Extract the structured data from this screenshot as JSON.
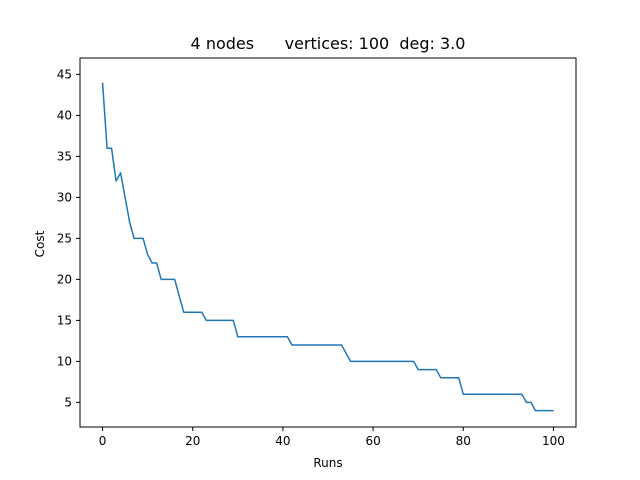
{
  "chart_data": {
    "type": "line",
    "title": "4 nodes      vertices: 100  deg: 3.0",
    "xlabel": "Runs",
    "ylabel": "Cost",
    "xlim": [
      -5,
      105
    ],
    "ylim": [
      2.0,
      47.0
    ],
    "xticks": [
      0,
      20,
      40,
      60,
      80,
      100
    ],
    "yticks": [
      5,
      10,
      15,
      20,
      25,
      30,
      35,
      40,
      45
    ],
    "grid": false,
    "line_color": "#1f77b4",
    "series": [
      {
        "x": [
          0,
          1,
          2,
          3,
          4,
          5,
          6,
          7,
          8,
          9,
          10,
          11,
          12,
          13,
          14,
          15,
          16,
          17,
          18,
          19,
          20,
          21,
          22,
          23,
          24,
          25,
          26,
          27,
          28,
          29,
          30,
          31,
          32,
          33,
          34,
          35,
          36,
          37,
          38,
          39,
          40,
          41,
          42,
          43,
          44,
          45,
          46,
          47,
          48,
          49,
          50,
          51,
          52,
          53,
          54,
          55,
          56,
          57,
          58,
          59,
          60,
          61,
          62,
          63,
          64,
          65,
          66,
          67,
          68,
          69,
          70,
          71,
          72,
          73,
          74,
          75,
          76,
          77,
          78,
          79,
          80,
          81,
          82,
          83,
          84,
          85,
          86,
          87,
          88,
          89,
          90,
          91,
          92,
          93,
          94,
          95,
          96,
          97,
          98,
          99,
          100
        ],
        "y": [
          44,
          36,
          36,
          32,
          33,
          30,
          27,
          25,
          25,
          25,
          23,
          22,
          22,
          20,
          20,
          20,
          20,
          18,
          16,
          16,
          16,
          16,
          16,
          15,
          15,
          15,
          15,
          15,
          15,
          15,
          13,
          13,
          13,
          13,
          13,
          13,
          13,
          13,
          13,
          13,
          13,
          13,
          12,
          12,
          12,
          12,
          12,
          12,
          12,
          12,
          12,
          12,
          12,
          12,
          11,
          10,
          10,
          10,
          10,
          10,
          10,
          10,
          10,
          10,
          10,
          10,
          10,
          10,
          10,
          10,
          9,
          9,
          9,
          9,
          9,
          8,
          8,
          8,
          8,
          8,
          6,
          6,
          6,
          6,
          6,
          6,
          6,
          6,
          6,
          6,
          6,
          6,
          6,
          6,
          5,
          5,
          4,
          4,
          4,
          4,
          4
        ]
      }
    ]
  }
}
